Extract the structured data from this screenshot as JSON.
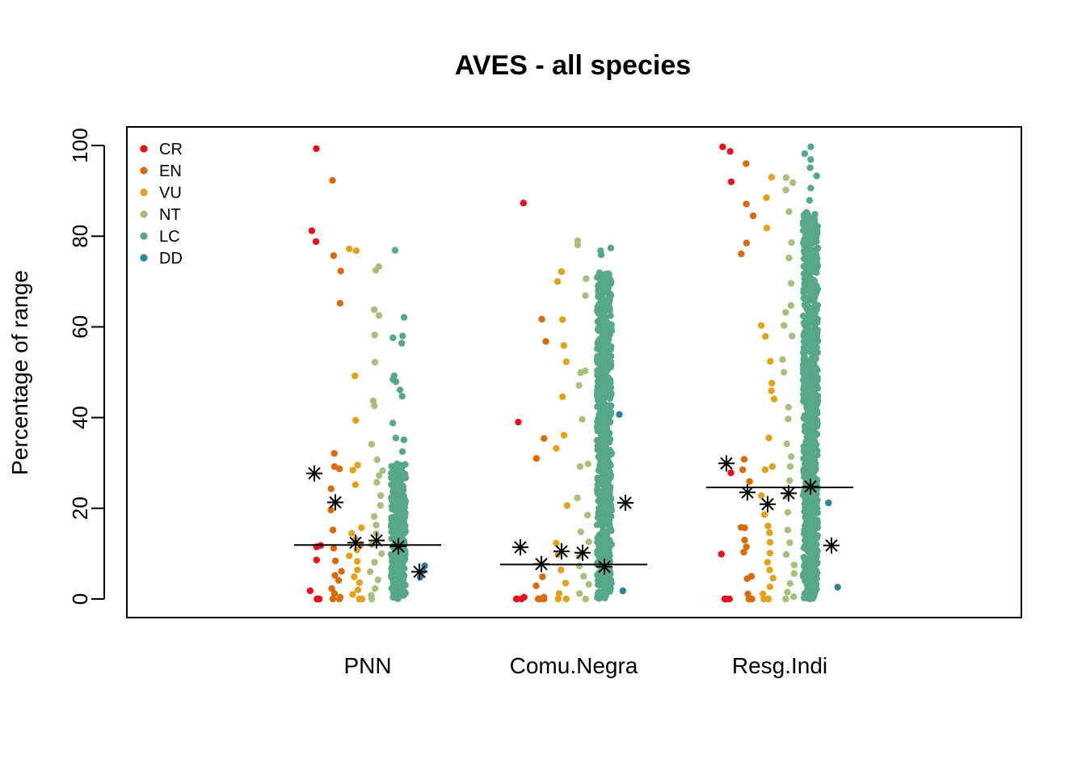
{
  "chart_data": {
    "type": "scatter",
    "title": "AVES - all species",
    "xlabel": "",
    "ylabel": "Percentage of range",
    "ylim": [
      0,
      100
    ],
    "yticks": [
      0,
      20,
      40,
      60,
      80,
      100
    ],
    "categories": [
      "PNN",
      "Comu.Negra",
      "Resg.Indi"
    ],
    "legend": {
      "placement": "top-left",
      "entries": [
        {
          "name": "CR",
          "color": "#e8101e"
        },
        {
          "name": "EN",
          "color": "#d86b0a"
        },
        {
          "name": "VU",
          "color": "#e3a21b"
        },
        {
          "name": "NT",
          "color": "#a8bf7e"
        },
        {
          "name": "LC",
          "color": "#55a888"
        },
        {
          "name": "DD",
          "color": "#2d8198"
        }
      ]
    },
    "series": [
      {
        "name": "CR",
        "color": "#e8101e",
        "points": [
          [
            0,
            99.3
          ],
          [
            0,
            81.2
          ],
          [
            0,
            78.8
          ],
          [
            0,
            11.8
          ],
          [
            0,
            11.5
          ],
          [
            0,
            8.6
          ],
          [
            0,
            1.8
          ],
          [
            0,
            0
          ],
          [
            0,
            0
          ],
          [
            0,
            0
          ],
          [
            1,
            87.3
          ],
          [
            1,
            39.0
          ],
          [
            1,
            0.4
          ],
          [
            1,
            0
          ],
          [
            1,
            0
          ],
          [
            1,
            0
          ],
          [
            2,
            99.7
          ],
          [
            2,
            98.7
          ],
          [
            2,
            92.0
          ],
          [
            2,
            27.8
          ],
          [
            2,
            9.9
          ],
          [
            2,
            0
          ],
          [
            2,
            0
          ],
          [
            2,
            0
          ]
        ]
      },
      {
        "name": "EN",
        "color": "#d86b0a",
        "points": [
          [
            0,
            92.3
          ],
          [
            0,
            75.7
          ],
          [
            0,
            72.3
          ],
          [
            0,
            65.2
          ],
          [
            0,
            32.1
          ],
          [
            0,
            29.2
          ],
          [
            0,
            28.7
          ],
          [
            0,
            24.3
          ],
          [
            0,
            19.6
          ],
          [
            0,
            15.2
          ],
          [
            0,
            11.2
          ],
          [
            0,
            8.4
          ],
          [
            0,
            6.1
          ],
          [
            0,
            5.2
          ],
          [
            0,
            4.1
          ],
          [
            0,
            2.3
          ],
          [
            0,
            1.2
          ],
          [
            0,
            0.4
          ],
          [
            0,
            0
          ],
          [
            0,
            0
          ],
          [
            1,
            61.7
          ],
          [
            1,
            56.8
          ],
          [
            1,
            35.4
          ],
          [
            1,
            31.0
          ],
          [
            1,
            4.9
          ],
          [
            1,
            2.9
          ],
          [
            1,
            0.4
          ],
          [
            1,
            0
          ],
          [
            1,
            0
          ],
          [
            1,
            0
          ],
          [
            1,
            0
          ],
          [
            2,
            96.0
          ],
          [
            2,
            87.1
          ],
          [
            2,
            84.5
          ],
          [
            2,
            78.5
          ],
          [
            2,
            76.1
          ],
          [
            2,
            30.8
          ],
          [
            2,
            28.5
          ],
          [
            2,
            25.9
          ],
          [
            2,
            15.8
          ],
          [
            2,
            15.7
          ],
          [
            2,
            13.0
          ],
          [
            2,
            11.5
          ],
          [
            2,
            10.3
          ],
          [
            2,
            5.0
          ],
          [
            2,
            4.5
          ],
          [
            2,
            1.1
          ],
          [
            2,
            0
          ],
          [
            2,
            0
          ],
          [
            2,
            0
          ]
        ]
      },
      {
        "name": "VU",
        "color": "#e3a21b",
        "points": [
          [
            0,
            77.2
          ],
          [
            0,
            76.8
          ],
          [
            0,
            49.2
          ],
          [
            0,
            39.4
          ],
          [
            0,
            29.5
          ],
          [
            0,
            28.4
          ],
          [
            0,
            25.2
          ],
          [
            0,
            15.7
          ],
          [
            0,
            14.5
          ],
          [
            0,
            13.2
          ],
          [
            0,
            12.0
          ],
          [
            0,
            10.8
          ],
          [
            0,
            9.5
          ],
          [
            0,
            8.3
          ],
          [
            0,
            6.4
          ],
          [
            0,
            4.9
          ],
          [
            0,
            3.6
          ],
          [
            0,
            2.0
          ],
          [
            0,
            1.0
          ],
          [
            0,
            0
          ],
          [
            0,
            0
          ],
          [
            1,
            72.2
          ],
          [
            1,
            70.0
          ],
          [
            1,
            61.6
          ],
          [
            1,
            55.9
          ],
          [
            1,
            52.3
          ],
          [
            1,
            44.6
          ],
          [
            1,
            36.1
          ],
          [
            1,
            33.2
          ],
          [
            1,
            20.6
          ],
          [
            1,
            12.3
          ],
          [
            1,
            9.8
          ],
          [
            1,
            6.4
          ],
          [
            1,
            3.5
          ],
          [
            1,
            1.2
          ],
          [
            1,
            0
          ],
          [
            1,
            0
          ],
          [
            2,
            93.0
          ],
          [
            2,
            88.5
          ],
          [
            2,
            81.8
          ],
          [
            2,
            60.3
          ],
          [
            2,
            57.9
          ],
          [
            2,
            52.4
          ],
          [
            2,
            47.6
          ],
          [
            2,
            45.9
          ],
          [
            2,
            44.1
          ],
          [
            2,
            35.5
          ],
          [
            2,
            29.2
          ],
          [
            2,
            28.5
          ],
          [
            2,
            22.8
          ],
          [
            2,
            18.6
          ],
          [
            2,
            16.1
          ],
          [
            2,
            14.6
          ],
          [
            2,
            12.5
          ],
          [
            2,
            10.1
          ],
          [
            2,
            8.1
          ],
          [
            2,
            6.4
          ],
          [
            2,
            4.6
          ],
          [
            2,
            2.7
          ],
          [
            2,
            1.1
          ],
          [
            2,
            0
          ],
          [
            2,
            0
          ]
        ]
      },
      {
        "name": "NT",
        "color": "#a8bf7e",
        "points": [
          [
            0,
            73.3
          ],
          [
            0,
            72.5
          ],
          [
            0,
            63.8
          ],
          [
            0,
            62.5
          ],
          [
            0,
            58.2
          ],
          [
            0,
            52.2
          ],
          [
            0,
            43.7
          ],
          [
            0,
            42.6
          ],
          [
            0,
            34.1
          ],
          [
            0,
            30.7
          ],
          [
            0,
            28.3
          ],
          [
            0,
            27.2
          ],
          [
            0,
            25.7
          ],
          [
            0,
            22.8
          ],
          [
            0,
            20.6
          ],
          [
            0,
            18.2
          ],
          [
            0,
            16.3
          ],
          [
            0,
            14.4
          ],
          [
            0,
            12.0
          ],
          [
            0,
            10.0
          ],
          [
            0,
            8.1
          ],
          [
            0,
            6.0
          ],
          [
            0,
            4.2
          ],
          [
            0,
            2.3
          ],
          [
            0,
            0.8
          ],
          [
            0,
            0
          ],
          [
            1,
            79.0
          ],
          [
            1,
            78.1
          ],
          [
            1,
            70.6
          ],
          [
            1,
            66.9
          ],
          [
            1,
            50.3
          ],
          [
            1,
            49.9
          ],
          [
            1,
            47.1
          ],
          [
            1,
            39.6
          ],
          [
            1,
            29.8
          ],
          [
            1,
            29.2
          ],
          [
            1,
            22.3
          ],
          [
            1,
            18.5
          ],
          [
            1,
            14.8
          ],
          [
            1,
            12.6
          ],
          [
            1,
            9.4
          ],
          [
            1,
            7.3
          ],
          [
            1,
            5.0
          ],
          [
            1,
            3.2
          ],
          [
            1,
            1.2
          ],
          [
            1,
            0
          ],
          [
            2,
            92.9
          ],
          [
            2,
            91.8
          ],
          [
            2,
            90.2
          ],
          [
            2,
            85.4
          ],
          [
            2,
            78.6
          ],
          [
            2,
            75.2
          ],
          [
            2,
            69.6
          ],
          [
            2,
            64.7
          ],
          [
            2,
            63.2
          ],
          [
            2,
            60.3
          ],
          [
            2,
            58.0
          ],
          [
            2,
            52.8
          ],
          [
            2,
            50.0
          ],
          [
            2,
            42.3
          ],
          [
            2,
            39.7
          ],
          [
            2,
            34.2
          ],
          [
            2,
            31.4
          ],
          [
            2,
            29.2
          ],
          [
            2,
            26.1
          ],
          [
            2,
            22.6
          ],
          [
            2,
            19.1
          ],
          [
            2,
            15.2
          ],
          [
            2,
            12.4
          ],
          [
            2,
            9.8
          ],
          [
            2,
            7.5
          ],
          [
            2,
            5.6
          ],
          [
            2,
            3.4
          ],
          [
            2,
            1.5
          ],
          [
            2,
            0.5
          ],
          [
            2,
            0
          ]
        ]
      },
      {
        "name": "LC",
        "color": "#55a888",
        "points": [
          [
            0,
            76.9
          ],
          [
            0,
            62.1
          ],
          [
            0,
            58.0
          ],
          [
            0,
            57.6
          ],
          [
            0,
            56.4
          ],
          [
            0,
            49.2
          ],
          [
            0,
            48.4
          ],
          [
            0,
            47.9
          ],
          [
            0,
            46.1
          ],
          [
            0,
            44.7
          ],
          [
            0,
            38.8
          ],
          [
            0,
            35.5
          ],
          [
            0,
            35.1
          ],
          [
            0,
            32.5
          ],
          [
            1,
            77.4
          ],
          [
            1,
            76.8
          ],
          [
            1,
            75.9
          ],
          [
            1,
            41.5
          ],
          [
            2,
            99.7
          ],
          [
            2,
            98.2
          ],
          [
            2,
            96.9
          ],
          [
            2,
            95.1
          ],
          [
            2,
            93.3
          ],
          [
            2,
            90.6
          ],
          [
            2,
            87.9
          ],
          [
            2,
            85.2
          ]
        ],
        "columns": [
          {
            "category": 0,
            "from": 0,
            "to": 30
          },
          {
            "category": 1,
            "from": 0,
            "to": 72
          },
          {
            "category": 2,
            "from": 0,
            "to": 85
          }
        ]
      },
      {
        "name": "DD",
        "color": "#2d8198",
        "points": [
          [
            0,
            7.3
          ],
          [
            0,
            6.2
          ],
          [
            0,
            4.8
          ],
          [
            1,
            40.7
          ],
          [
            1,
            1.8
          ],
          [
            2,
            21.2
          ],
          [
            2,
            2.6
          ]
        ]
      }
    ],
    "means": {
      "CR": [
        27.7,
        11.4,
        29.9
      ],
      "EN": [
        21.3,
        7.7,
        23.5
      ],
      "VU": [
        12.4,
        10.5,
        20.9
      ],
      "NT": [
        12.9,
        10.2,
        23.3
      ],
      "LC": [
        11.6,
        7.1,
        24.8
      ],
      "DD": [
        6.0,
        21.2,
        11.8
      ]
    },
    "overall_medians": [
      11.9,
      7.6,
      24.6
    ]
  }
}
